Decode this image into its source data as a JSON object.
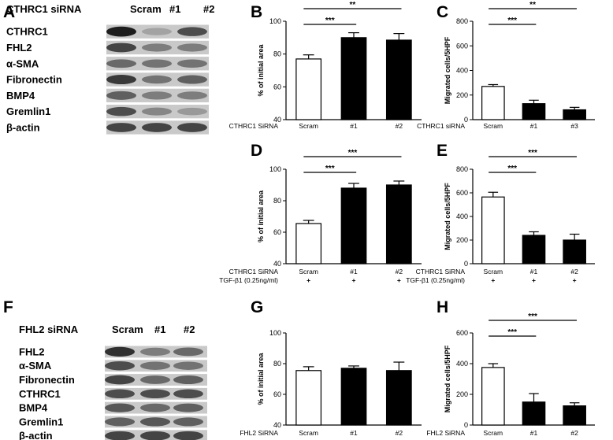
{
  "panels": {
    "A": "A",
    "B": "B",
    "C": "C",
    "D": "D",
    "E": "E",
    "F": "F",
    "G": "G",
    "H": "H"
  },
  "blots": [
    {
      "panel": "A",
      "header": [
        "CTHRC1 siRNA",
        "Scram",
        "#1",
        "#2"
      ],
      "rows": [
        {
          "label": "CTHRC1",
          "intensity": [
            0.95,
            0.25,
            0.7
          ]
        },
        {
          "label": "FHL2",
          "intensity": [
            0.75,
            0.45,
            0.45
          ]
        },
        {
          "label": "α-SMA",
          "intensity": [
            0.55,
            0.5,
            0.5
          ]
        },
        {
          "label": "Fibronectin",
          "intensity": [
            0.8,
            0.5,
            0.6
          ]
        },
        {
          "label": "BMP4",
          "intensity": [
            0.6,
            0.45,
            0.45
          ]
        },
        {
          "label": "Gremlin1",
          "intensity": [
            0.7,
            0.4,
            0.3
          ]
        },
        {
          "label": "β-actin",
          "intensity": [
            0.75,
            0.75,
            0.75
          ]
        }
      ]
    },
    {
      "panel": "F",
      "header": [
        "FHL2 siRNA",
        "Scram",
        "#1",
        "#2"
      ],
      "rows": [
        {
          "label": "FHL2",
          "intensity": [
            0.85,
            0.45,
            0.55
          ]
        },
        {
          "label": "α-SMA",
          "intensity": [
            0.7,
            0.5,
            0.5
          ]
        },
        {
          "label": "Fibronectin",
          "intensity": [
            0.75,
            0.55,
            0.6
          ]
        },
        {
          "label": "CTHRC1",
          "intensity": [
            0.7,
            0.7,
            0.7
          ]
        },
        {
          "label": "BMP4",
          "intensity": [
            0.65,
            0.55,
            0.6
          ]
        },
        {
          "label": "Gremlin1",
          "intensity": [
            0.6,
            0.65,
            0.6
          ]
        },
        {
          "label": "β-actin",
          "intensity": [
            0.75,
            0.75,
            0.75
          ]
        }
      ]
    }
  ],
  "chart_data": [
    {
      "panel": "B",
      "type": "bar",
      "ylabel": "% of initial area",
      "ylim": [
        40,
        100
      ],
      "yticks": [
        40,
        60,
        80,
        100
      ],
      "row_label": "CTHRC1 SiRNA",
      "categories": [
        "Scram",
        "#1",
        "#2"
      ],
      "values": [
        77,
        90,
        88.5
      ],
      "errors": [
        2.5,
        3,
        4
      ],
      "fills": [
        "#ffffff",
        "#000000",
        "#000000"
      ],
      "significance": [
        {
          "from": 0,
          "to": 1,
          "label": "***"
        },
        {
          "from": 0,
          "to": 2,
          "label": "**"
        }
      ]
    },
    {
      "panel": "C",
      "type": "bar",
      "ylabel": "Migrated cells/5HPF",
      "ylim": [
        0,
        800
      ],
      "yticks": [
        0,
        200,
        400,
        600,
        800
      ],
      "row_label": "CTHRC1 siRNA",
      "categories": [
        "Scram",
        "#1",
        "#3"
      ],
      "values": [
        270,
        130,
        80
      ],
      "errors": [
        15,
        28,
        20
      ],
      "fills": [
        "#ffffff",
        "#000000",
        "#000000"
      ],
      "significance": [
        {
          "from": 0,
          "to": 1,
          "label": "***"
        },
        {
          "from": 0,
          "to": 2,
          "label": "**"
        }
      ]
    },
    {
      "panel": "D",
      "type": "bar",
      "ylabel": "% of initial area",
      "ylim": [
        40,
        100
      ],
      "yticks": [
        40,
        60,
        80,
        100
      ],
      "row_label": "CTHRC1 SiRNA",
      "row2_label": "TGF-β1 (0.25ng/ml)",
      "row2_values": [
        "+",
        "+",
        "+"
      ],
      "categories": [
        "Scram",
        "#1",
        "#2"
      ],
      "values": [
        65.5,
        88,
        90
      ],
      "errors": [
        2,
        3,
        2.5
      ],
      "fills": [
        "#ffffff",
        "#000000",
        "#000000"
      ],
      "significance": [
        {
          "from": 0,
          "to": 1,
          "label": "***"
        },
        {
          "from": 0,
          "to": 2,
          "label": "***"
        }
      ]
    },
    {
      "panel": "E",
      "type": "bar",
      "ylabel": "Migrated cells/5HPF",
      "ylim": [
        0,
        800
      ],
      "yticks": [
        0,
        200,
        400,
        600,
        800
      ],
      "row_label": "CTHRC1 SiRNA",
      "row2_label": "TGF-β1 (0.25ng/ml)",
      "row2_values": [
        "+",
        "+",
        "+"
      ],
      "categories": [
        "Scram",
        "#1",
        "#2"
      ],
      "values": [
        565,
        240,
        200
      ],
      "errors": [
        40,
        30,
        50
      ],
      "fills": [
        "#ffffff",
        "#000000",
        "#000000"
      ],
      "significance": [
        {
          "from": 0,
          "to": 1,
          "label": "***"
        },
        {
          "from": 0,
          "to": 2,
          "label": "***"
        }
      ]
    },
    {
      "panel": "G",
      "type": "bar",
      "ylabel": "% of initial area",
      "ylim": [
        40,
        100
      ],
      "yticks": [
        40,
        60,
        80,
        100
      ],
      "row_label": "FHL2 SiRNA",
      "categories": [
        "Scram",
        "#1",
        "#2"
      ],
      "values": [
        75.5,
        77,
        75.5
      ],
      "errors": [
        2.5,
        1.5,
        5.5
      ],
      "fills": [
        "#ffffff",
        "#000000",
        "#000000"
      ],
      "significance": []
    },
    {
      "panel": "H",
      "type": "bar",
      "ylabel": "Migrated cells/5HPF",
      "ylim": [
        0,
        600
      ],
      "yticks": [
        0,
        200,
        400,
        600
      ],
      "row_label": "FHL2 SiRNA",
      "categories": [
        "Scram",
        "#1",
        "#2"
      ],
      "values": [
        375,
        150,
        125
      ],
      "errors": [
        25,
        55,
        20
      ],
      "fills": [
        "#ffffff",
        "#000000",
        "#000000"
      ],
      "significance": [
        {
          "from": 0,
          "to": 1,
          "label": "***"
        },
        {
          "from": 0,
          "to": 2,
          "label": "***"
        }
      ]
    }
  ]
}
